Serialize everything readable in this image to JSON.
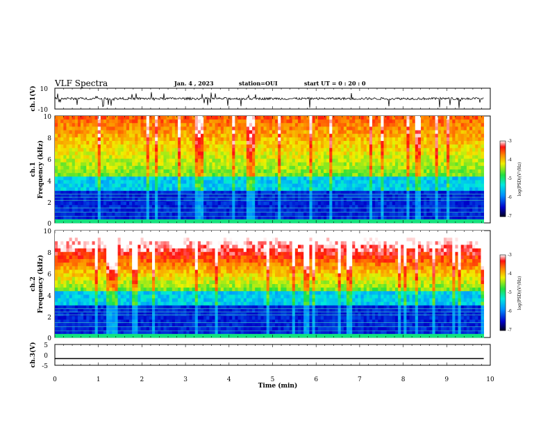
{
  "header": {
    "title": "VLF Spectra",
    "date": "Jan. 4 , 2023",
    "station": "station=OUI",
    "start": "start UT =  0 : 20 : 0"
  },
  "chart_data": [
    {
      "type": "line",
      "name": "ch1-waveform",
      "ylabel": "ch.1(V)",
      "ylim": [
        -10,
        10
      ],
      "y_ticks": [
        "10",
        "-10"
      ],
      "x": [
        0,
        9.85
      ],
      "y": [
        0,
        0
      ]
    },
    {
      "type": "heatmap",
      "name": "ch1-spectrogram",
      "ylabel_top": "ch.1",
      "ylabel": "Frequency (kHz)",
      "ylim": [
        0,
        10
      ],
      "y_ticks": [
        "10",
        "8",
        "6",
        "4",
        "2",
        "0"
      ],
      "x_range": [
        0,
        9.85
      ],
      "colorbar": {
        "label": "log(PSD)(V²/Hz)",
        "range": [
          -7,
          -3
        ],
        "ticks": [
          "-3",
          "-4",
          "-5",
          "-6",
          "-7"
        ]
      }
    },
    {
      "type": "heatmap",
      "name": "ch2-spectrogram",
      "ylabel_top": "ch.2",
      "ylabel": "Frequency (kHz)",
      "ylim": [
        0,
        10
      ],
      "y_ticks": [
        "10",
        "8",
        "6",
        "4",
        "2",
        "0"
      ],
      "x_range": [
        0,
        9.85
      ],
      "colorbar": {
        "label": "log(PSD)(V²/Hz)",
        "range": [
          -7,
          -3
        ],
        "ticks": [
          "-3",
          "-4",
          "-5",
          "-6",
          "-7"
        ]
      }
    },
    {
      "type": "line",
      "name": "ch3-waveform",
      "ylabel": "ch.3(V)",
      "ylim": [
        -5,
        5
      ],
      "y_ticks": [
        "5",
        "0",
        "-5"
      ],
      "x": [
        0,
        9.85
      ],
      "y": [
        -1.8,
        -1.8
      ]
    }
  ],
  "x_axis": {
    "label": "Time (min)",
    "range": [
      0,
      10
    ],
    "ticks": [
      "0",
      "1",
      "2",
      "3",
      "4",
      "5",
      "6",
      "7",
      "8",
      "9",
      "10"
    ]
  },
  "colors": {
    "frame": "#000000",
    "background": "#ffffff"
  }
}
